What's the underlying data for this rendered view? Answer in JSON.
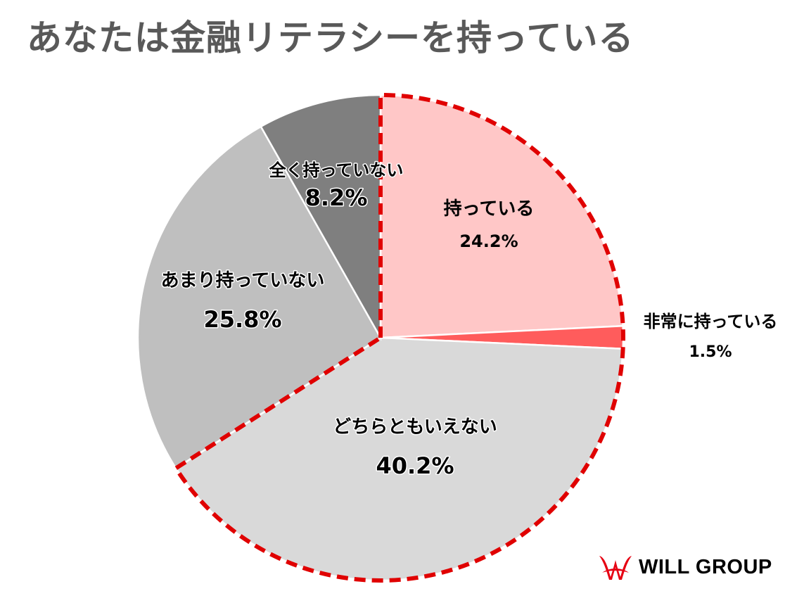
{
  "chart_data": {
    "type": "pie",
    "title": "あなたは金融リテラシーを持っている",
    "start_angle_deg": 0,
    "direction": "clockwise",
    "highlight_group": "持っている + 非常に持っている + どちらともいえない (red dashed outline)",
    "slices": [
      {
        "label": "持っている",
        "value": 24.2,
        "value_label": "24.2%",
        "color": "#ffc7c7",
        "highlight": true
      },
      {
        "label": "非常に持っている",
        "value": 1.5,
        "value_label": "1.5%",
        "color": "#ff5c5c",
        "highlight": true
      },
      {
        "label": "どちらともいえない",
        "value": 40.2,
        "value_label": "40.2%",
        "color": "#d9d9d9",
        "highlight": true
      },
      {
        "label": "あまり持っていない",
        "value": 25.8,
        "value_label": "25.8%",
        "color": "#bfbfbf",
        "highlight": false
      },
      {
        "label": "全く持っていない",
        "value": 8.2,
        "value_label": "8.2%",
        "color": "#7f7f7f",
        "highlight": false
      }
    ],
    "highlight_outline_color": "#e00000",
    "slice_border_color": "#ffffff"
  },
  "brand": {
    "name": "WILL GROUP",
    "mark_color": "#e60012"
  }
}
